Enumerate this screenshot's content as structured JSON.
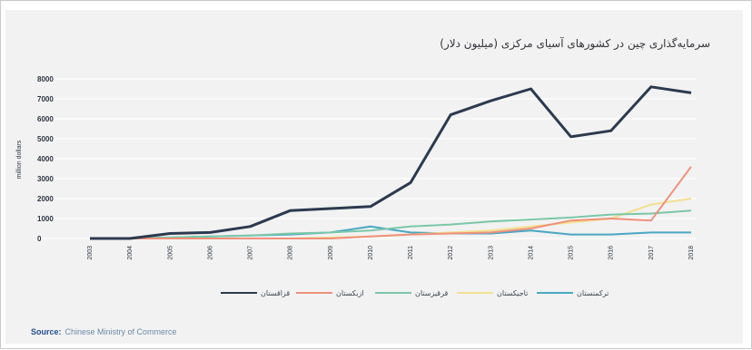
{
  "title": "سرمایه‌گذاری چین در کشورهای آسیای مرکزی (میلیون دلار)",
  "source": {
    "label": "Source:",
    "text": "Chinese Ministry of Commerce"
  },
  "colors": {
    "background": "#f2f2f2",
    "grid": "#ffffff",
    "axis_text": "#2c3440"
  },
  "chart_data": {
    "type": "line",
    "title": "سرمایه‌گذاری چین در کشورهای آسیای مرکزی (میلیون دلار)",
    "xlabel": "",
    "ylabel": "million dollars",
    "x": [
      "2003",
      "2004",
      "2005",
      "2006",
      "2007",
      "2008",
      "2009",
      "2010",
      "2011",
      "2012",
      "2013",
      "2014",
      "2015",
      "2016",
      "2017",
      "2018"
    ],
    "ylim": [
      0,
      8000
    ],
    "yticks": [
      "0",
      "1000",
      "2000",
      "3000",
      "4000",
      "5000",
      "6000",
      "7000",
      "8000"
    ],
    "grid": true,
    "legend_position": "bottom",
    "series": [
      {
        "name": "قزاقستان",
        "color": "#2c3a4f",
        "values": [
          0,
          0,
          250,
          300,
          600,
          1400,
          1500,
          1600,
          2800,
          6200,
          6900,
          7500,
          5100,
          5400,
          7600,
          7300
        ]
      },
      {
        "name": "ازبکستان",
        "color": "#f0907a",
        "values": [
          0,
          0,
          0,
          0,
          0,
          0,
          0,
          100,
          200,
          250,
          300,
          500,
          900,
          1000,
          900,
          3600
        ]
      },
      {
        "name": "قرقیزستان",
        "color": "#7bc7a8",
        "values": [
          0,
          0,
          50,
          100,
          150,
          250,
          300,
          400,
          600,
          700,
          850,
          950,
          1050,
          1200,
          1250,
          1400
        ]
      },
      {
        "name": "تاجیکستان",
        "color": "#f2e08f",
        "values": [
          0,
          0,
          0,
          0,
          0,
          0,
          50,
          100,
          200,
          300,
          400,
          600,
          800,
          1000,
          1700,
          2000
        ]
      },
      {
        "name": "ترکمنستان",
        "color": "#49a7c4",
        "values": [
          0,
          0,
          50,
          100,
          150,
          200,
          300,
          600,
          300,
          250,
          250,
          400,
          200,
          200,
          300,
          300
        ]
      }
    ]
  }
}
